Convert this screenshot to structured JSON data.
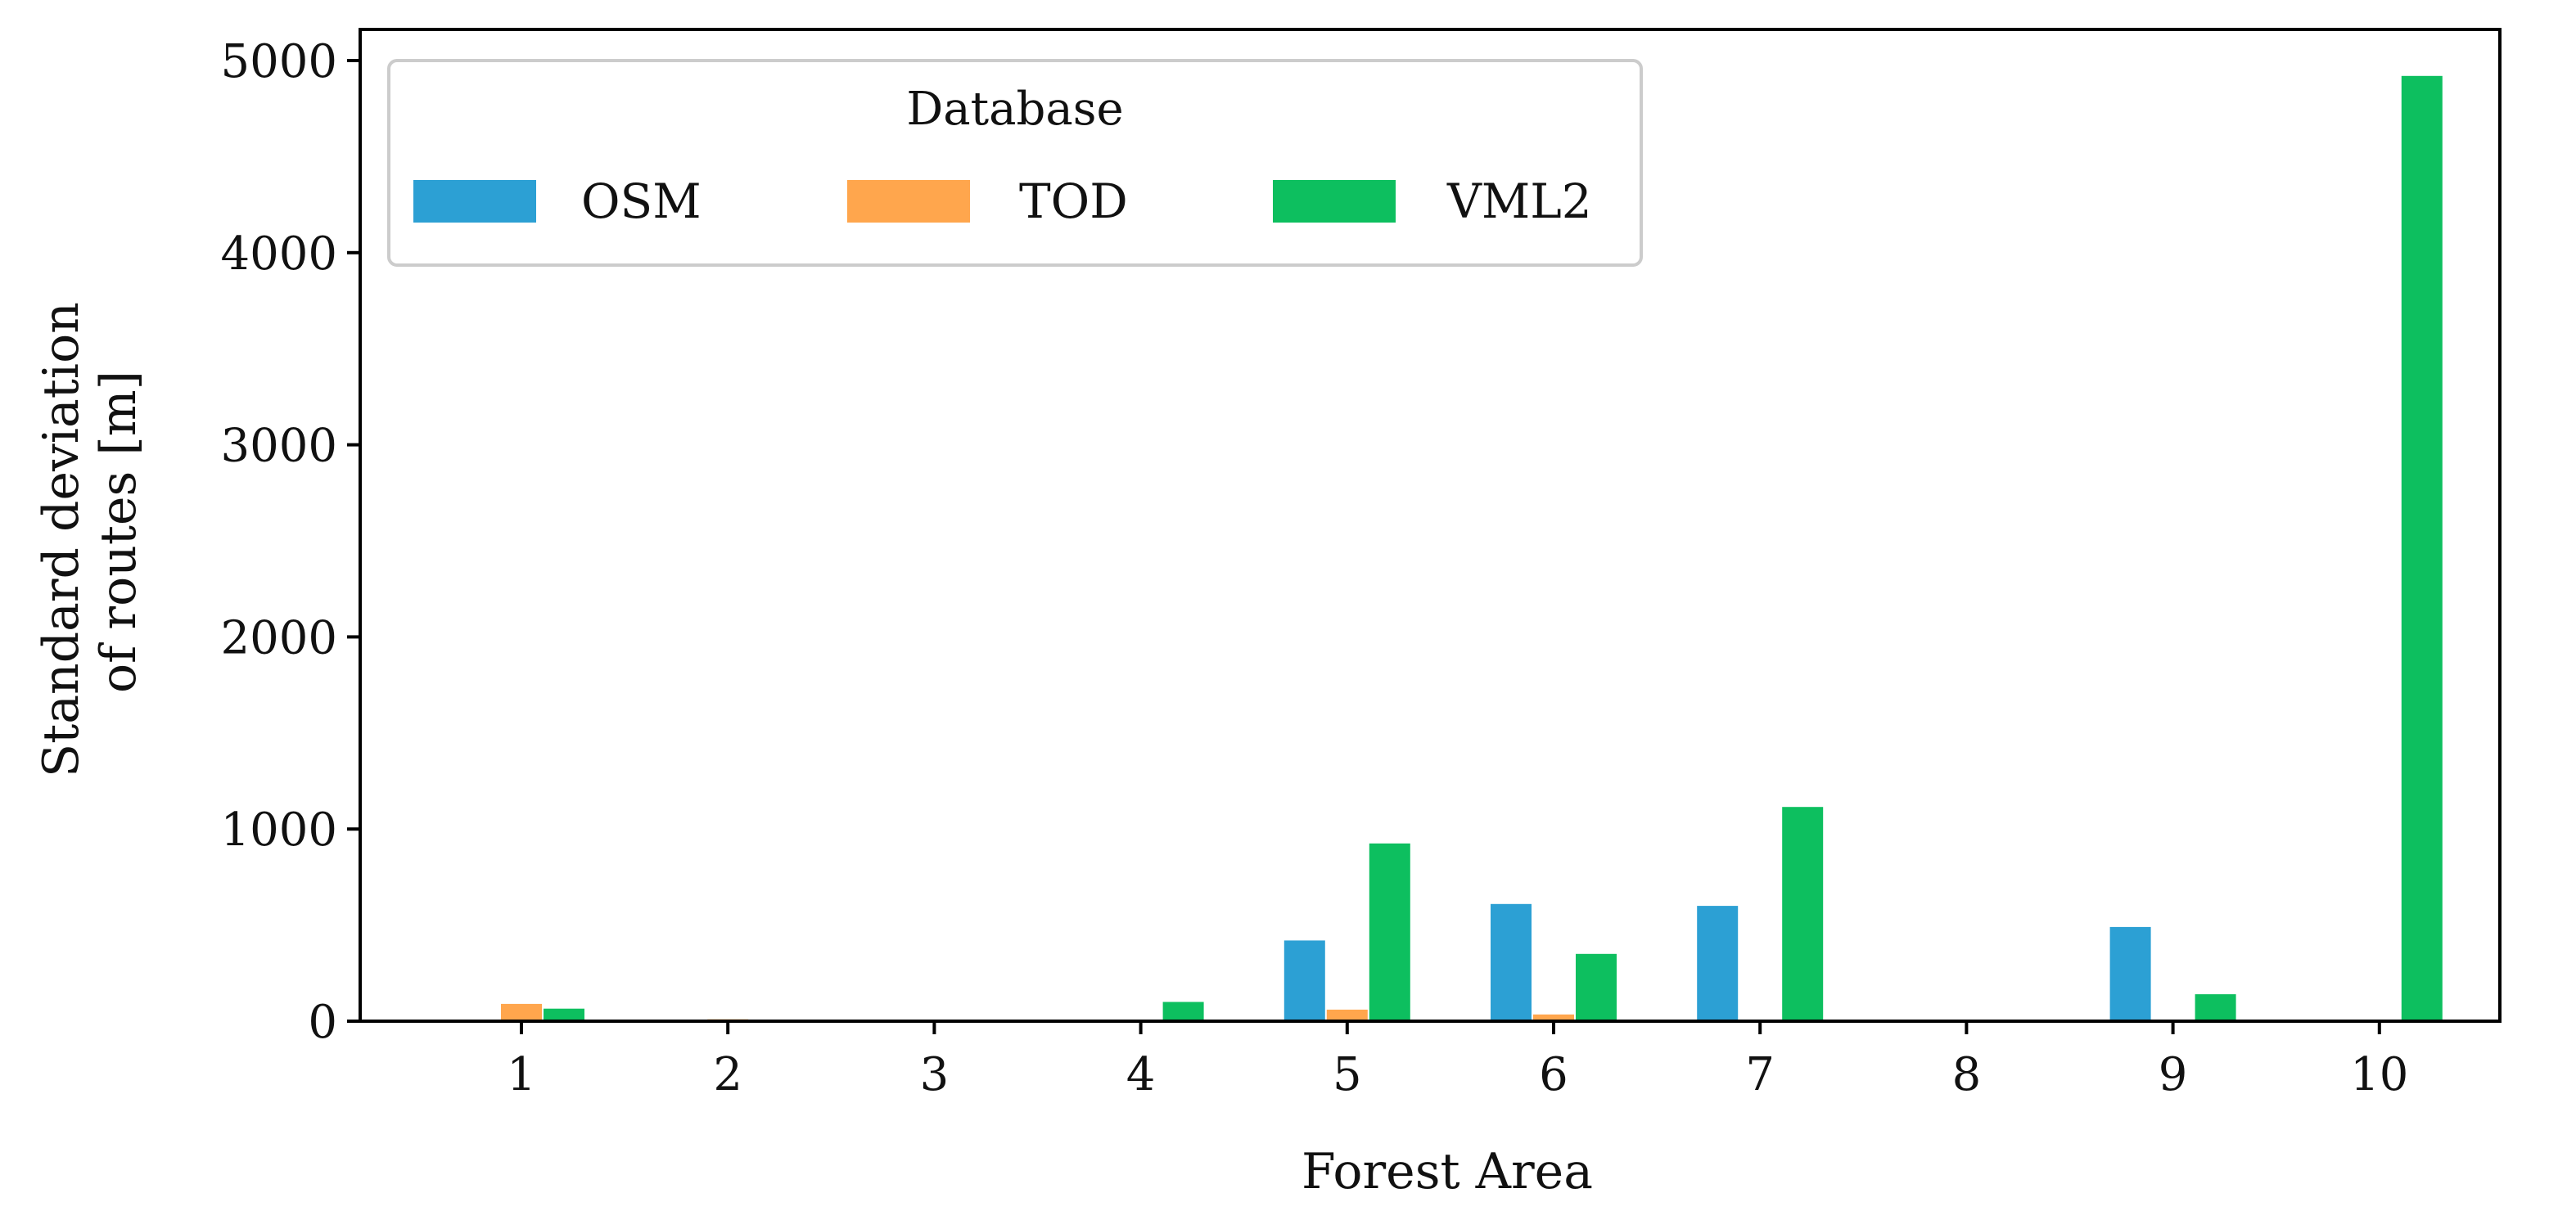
{
  "chart_data": {
    "type": "bar",
    "title": "",
    "xlabel": "Forest Area",
    "ylabel": [
      "Standard deviation",
      "of routes [m]"
    ],
    "categories": [
      "1",
      "2",
      "3",
      "4",
      "5",
      "6",
      "7",
      "8",
      "9",
      "10"
    ],
    "ylim": [
      0,
      5000
    ],
    "yticks": [
      "0",
      "1000",
      "2000",
      "3000",
      "4000",
      "5000"
    ],
    "grid": false,
    "legend": {
      "title": "Database",
      "placement": "top-left"
    },
    "series": [
      {
        "name": "OSM",
        "color": "#2ca0d4",
        "values": [
          0,
          0,
          0,
          0,
          420,
          610,
          600,
          0,
          490,
          0
        ]
      },
      {
        "name": "TOD",
        "color": "#ffa64d",
        "values": [
          90,
          10,
          0,
          0,
          60,
          35,
          0,
          0,
          0,
          0
        ]
      },
      {
        "name": "VML2",
        "color": "#0dbf5f",
        "values": [
          65,
          0,
          0,
          100,
          925,
          350,
          1115,
          0,
          140,
          4920
        ]
      }
    ]
  }
}
